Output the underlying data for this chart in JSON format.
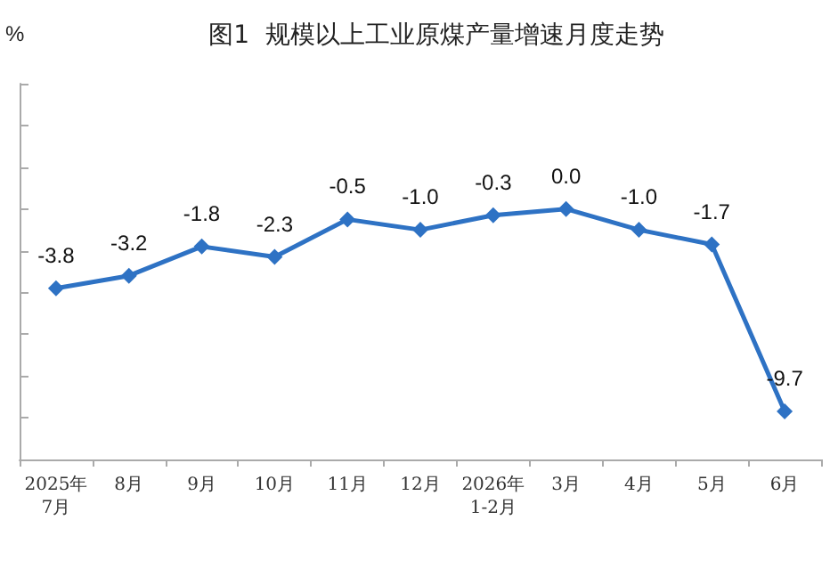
{
  "chart_data": {
    "type": "line",
    "title": "图1  规模以上工业原煤产量增速月度走势",
    "ylabel": "%",
    "categories": [
      "2025年\n7月",
      "8月",
      "9月",
      "10月",
      "11月",
      "12月",
      "2026年\n1-2月",
      "3月",
      "4月",
      "5月",
      "6月"
    ],
    "series": [
      {
        "color": "#2e72c4",
        "values": [
          -3.8,
          -3.2,
          -1.8,
          -2.3,
          -0.5,
          -1.0,
          -0.3,
          0.0,
          -1.0,
          -1.7,
          -9.7
        ],
        "value_labels": [
          "-3.8",
          "-3.2",
          "-1.8",
          "-2.3",
          "-0.5",
          "-1.0",
          "-0.3",
          "0.0",
          "-1.0",
          "-1.7",
          "-9.7"
        ]
      }
    ],
    "ylim": [
      -12,
      6
    ],
    "yticks": [
      {
        "value": -12,
        "label": null
      },
      {
        "value": -10,
        "label": null
      },
      {
        "value": -8,
        "label": null
      },
      {
        "value": -6,
        "label": null
      },
      {
        "value": -4,
        "label": null
      },
      {
        "value": -2,
        "label": null
      },
      {
        "value": 0,
        "label": null
      },
      {
        "value": 2,
        "label": null
      },
      {
        "value": 4,
        "label": null
      },
      {
        "value": 6,
        "label": null
      }
    ],
    "marker": "diamond",
    "grid": false
  }
}
